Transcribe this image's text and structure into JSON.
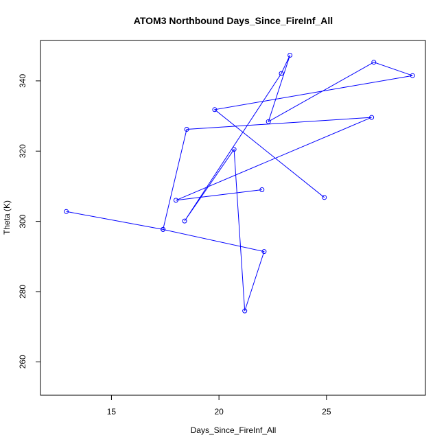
{
  "chart_data": {
    "type": "line",
    "title": "ATOM3 Northbound Days_Since_FireInf_All",
    "xlabel": "Days_Since_FireInf_All",
    "ylabel": "Theta (K)",
    "xlim": [
      11.7,
      29.6
    ],
    "ylim": [
      250.5,
      351.5
    ],
    "xticks": [
      15,
      20,
      25
    ],
    "yticks": [
      260,
      280,
      300,
      320,
      340
    ],
    "grid": false,
    "legend": "none",
    "colors": {
      "series": "#0000ff"
    },
    "series": [
      {
        "marker": "open-circle",
        "x": [
          12.9,
          17.4,
          22.1,
          21.2,
          20.7,
          18.4,
          22.9,
          23.3,
          22.3,
          27.2,
          29.0,
          19.8,
          24.9
        ],
        "y": [
          302.8,
          297.7,
          291.4,
          274.5,
          320.5,
          300.1,
          342.1,
          347.3,
          328.4,
          345.3,
          341.5,
          331.8,
          306.8
        ]
      },
      {
        "marker": "open-circle",
        "x": [
          17.4,
          18.5,
          27.1,
          18.0,
          22.0
        ],
        "y": [
          297.7,
          326.2,
          329.6,
          306.0,
          309.0
        ]
      }
    ]
  }
}
